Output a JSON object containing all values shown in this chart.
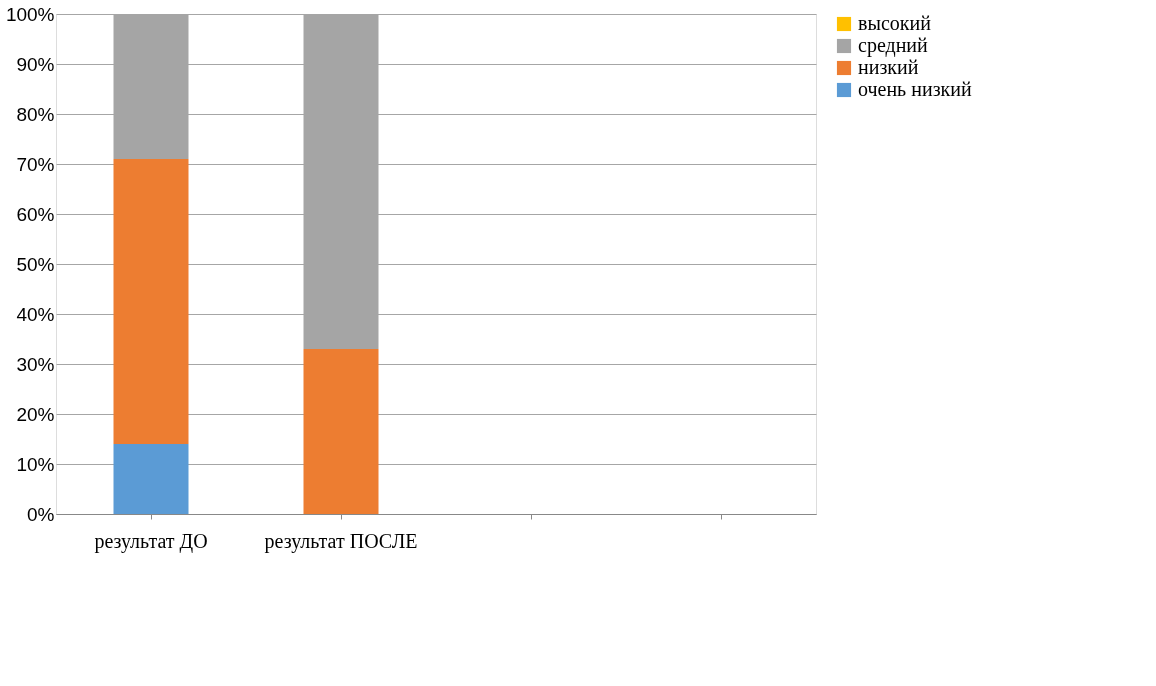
{
  "chart_data": {
    "type": "bar",
    "stacked": true,
    "categories": [
      "результат ДО",
      "результат ПОСЛЕ",
      null,
      null
    ],
    "series": [
      {
        "name": "очень низкий",
        "color": "#5b9bd5",
        "values": [
          14,
          0,
          null,
          null
        ]
      },
      {
        "name": "низкий",
        "color": "#ed7d31",
        "values": [
          57,
          33,
          null,
          null
        ]
      },
      {
        "name": "средний",
        "color": "#a5a5a5",
        "values": [
          29,
          67,
          null,
          null
        ]
      },
      {
        "name": "высокий",
        "color": "#ffc000",
        "values": [
          0,
          0,
          null,
          null
        ]
      }
    ],
    "ylim": [
      0,
      100
    ],
    "yticks": [
      {
        "value": 0,
        "label": "0%"
      },
      {
        "value": 10,
        "label": "10%"
      },
      {
        "value": 20,
        "label": "20%"
      },
      {
        "value": 30,
        "label": "30%"
      },
      {
        "value": 40,
        "label": "40%"
      },
      {
        "value": 50,
        "label": "50%"
      },
      {
        "value": 60,
        "label": "60%"
      },
      {
        "value": 70,
        "label": "70%"
      },
      {
        "value": 80,
        "label": "80%"
      },
      {
        "value": 90,
        "label": "90%"
      },
      {
        "value": 100,
        "label": "100%"
      }
    ],
    "grid": "y",
    "legend": "right"
  }
}
